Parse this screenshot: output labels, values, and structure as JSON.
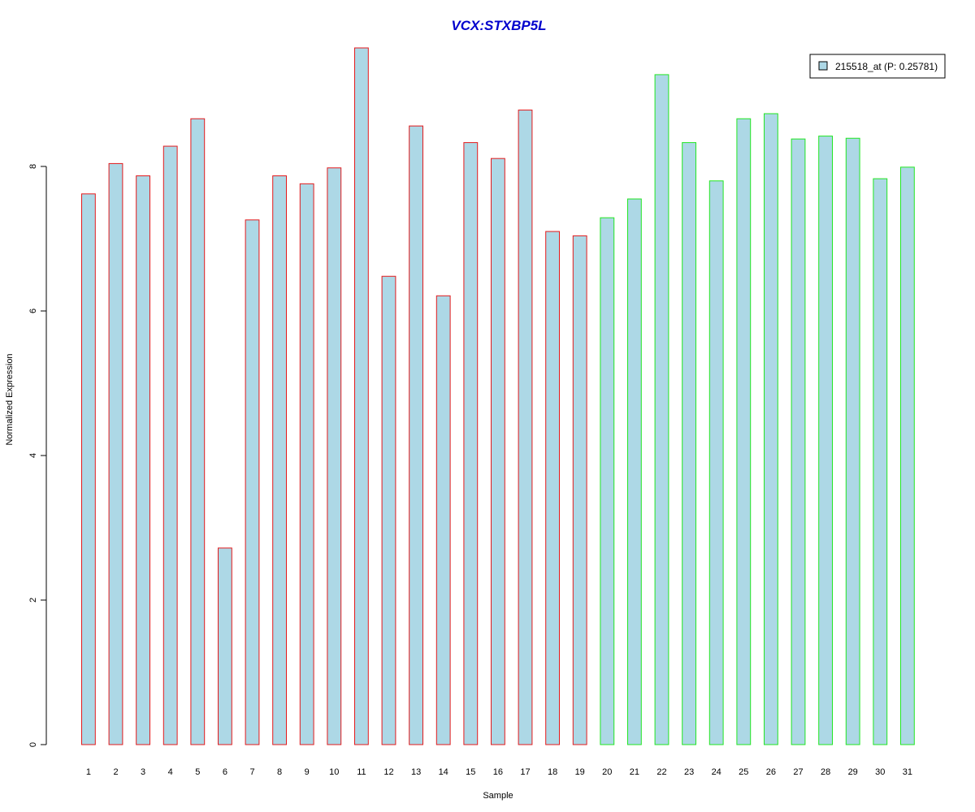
{
  "chart_data": {
    "type": "bar",
    "title": "VCX:STXBP5L",
    "xlabel": "Sample",
    "ylabel": "Normalized Expression",
    "categories": [
      "1",
      "2",
      "3",
      "4",
      "5",
      "6",
      "7",
      "8",
      "9",
      "10",
      "11",
      "12",
      "13",
      "14",
      "15",
      "16",
      "17",
      "18",
      "19",
      "20",
      "21",
      "22",
      "23",
      "24",
      "25",
      "26",
      "27",
      "28",
      "29",
      "30",
      "31"
    ],
    "series": [
      {
        "name": "215518_at (P: 0.25781)",
        "values": [
          7.62,
          8.04,
          7.87,
          8.28,
          8.66,
          2.72,
          7.26,
          7.87,
          7.76,
          7.98,
          9.64,
          6.48,
          8.56,
          6.21,
          8.33,
          8.11,
          8.78,
          7.1,
          7.04,
          7.29,
          7.55,
          9.27,
          8.33,
          7.8,
          8.66,
          8.73,
          8.38,
          8.42,
          8.39,
          7.83,
          7.99
        ]
      }
    ],
    "groups": [
      {
        "start": 1,
        "end": 19,
        "border_color": "#e31a1c"
      },
      {
        "start": 20,
        "end": 31,
        "border_color": "#22e622"
      }
    ],
    "yticks": [
      0,
      2,
      4,
      6,
      8
    ],
    "ylim": [
      0,
      9.64
    ],
    "bar_fill": "#add8e6",
    "title_color": "#0000cd",
    "legend_position": "top-right",
    "grid": false
  }
}
